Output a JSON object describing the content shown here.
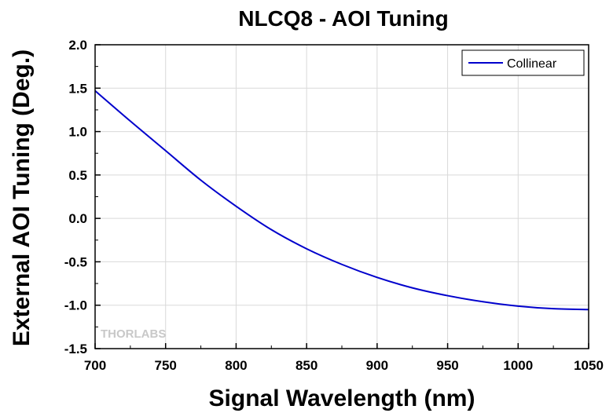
{
  "chart_data": {
    "type": "line",
    "title": "NLCQ8 - AOI Tuning",
    "xlabel": "Signal Wavelength (nm)",
    "ylabel": "External AOI Tuning (Deg.)",
    "xlim": [
      700,
      1050
    ],
    "ylim": [
      -1.5,
      2.0
    ],
    "xticks": [
      700,
      750,
      800,
      850,
      900,
      950,
      1000,
      1050
    ],
    "yticks": [
      -1.5,
      -1.0,
      -0.5,
      0.0,
      0.5,
      1.0,
      1.5,
      2.0
    ],
    "xtick_labels": [
      "700",
      "750",
      "800",
      "850",
      "900",
      "950",
      "1000",
      "1050"
    ],
    "ytick_labels": [
      "-1.5",
      "-1.0",
      "-0.5",
      "0.0",
      "0.5",
      "1.0",
      "1.5",
      "2.0"
    ],
    "grid": true,
    "legend": {
      "position": "top-right",
      "entries": [
        "Collinear"
      ]
    },
    "watermark": "THORLABS",
    "series": [
      {
        "name": "Collinear",
        "color": "#0000cc",
        "x": [
          700,
          725,
          750,
          775,
          800,
          825,
          850,
          875,
          900,
          925,
          950,
          975,
          1000,
          1025,
          1050
        ],
        "y": [
          1.47,
          1.12,
          0.78,
          0.44,
          0.14,
          -0.13,
          -0.35,
          -0.53,
          -0.68,
          -0.8,
          -0.89,
          -0.96,
          -1.01,
          -1.04,
          -1.05
        ]
      }
    ]
  }
}
